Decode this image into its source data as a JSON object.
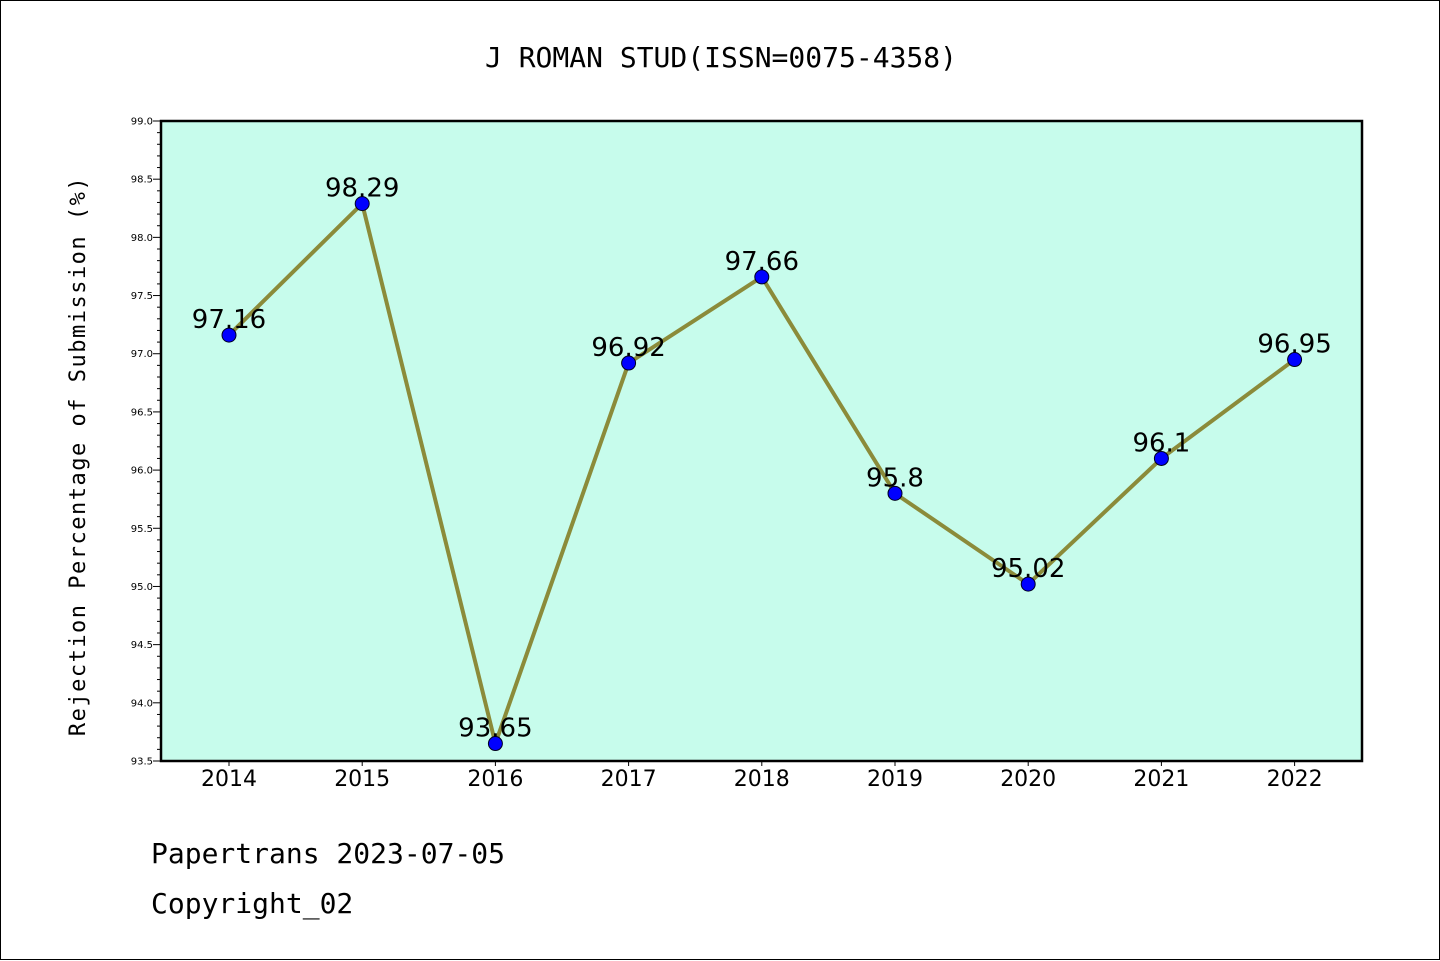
{
  "colors": {
    "plot_background": "#c7fcec",
    "line": "#8b8b3a",
    "marker": "#0000ff",
    "frame": "#000000"
  },
  "chart_data": {
    "type": "line",
    "title": "J ROMAN STUD(ISSN=0075-4358)",
    "xlabel": "",
    "ylabel": "Rejection Percentage of Submission (%)",
    "categories": [
      "2014",
      "2015",
      "2016",
      "2017",
      "2018",
      "2019",
      "2020",
      "2021",
      "2022"
    ],
    "series": [
      {
        "values": [
          97.16,
          98.29,
          93.65,
          96.92,
          97.66,
          95.8,
          95.02,
          96.1,
          96.95
        ],
        "labels": [
          "97.16",
          "98.29",
          "93.65",
          "96.92",
          "97.66",
          "95.8",
          "95.02",
          "96.1",
          "96.95"
        ]
      }
    ],
    "ylim": [
      93.5,
      99.0
    ],
    "yticks": [
      "93.5",
      "94.0",
      "94.5",
      "95.0",
      "95.5",
      "96.0",
      "96.5",
      "97.0",
      "97.5",
      "98.0",
      "98.5",
      "99.0"
    ],
    "grid": false
  },
  "footer": {
    "line1": "Papertrans 2023-07-05",
    "line2": "Copyright_02"
  }
}
